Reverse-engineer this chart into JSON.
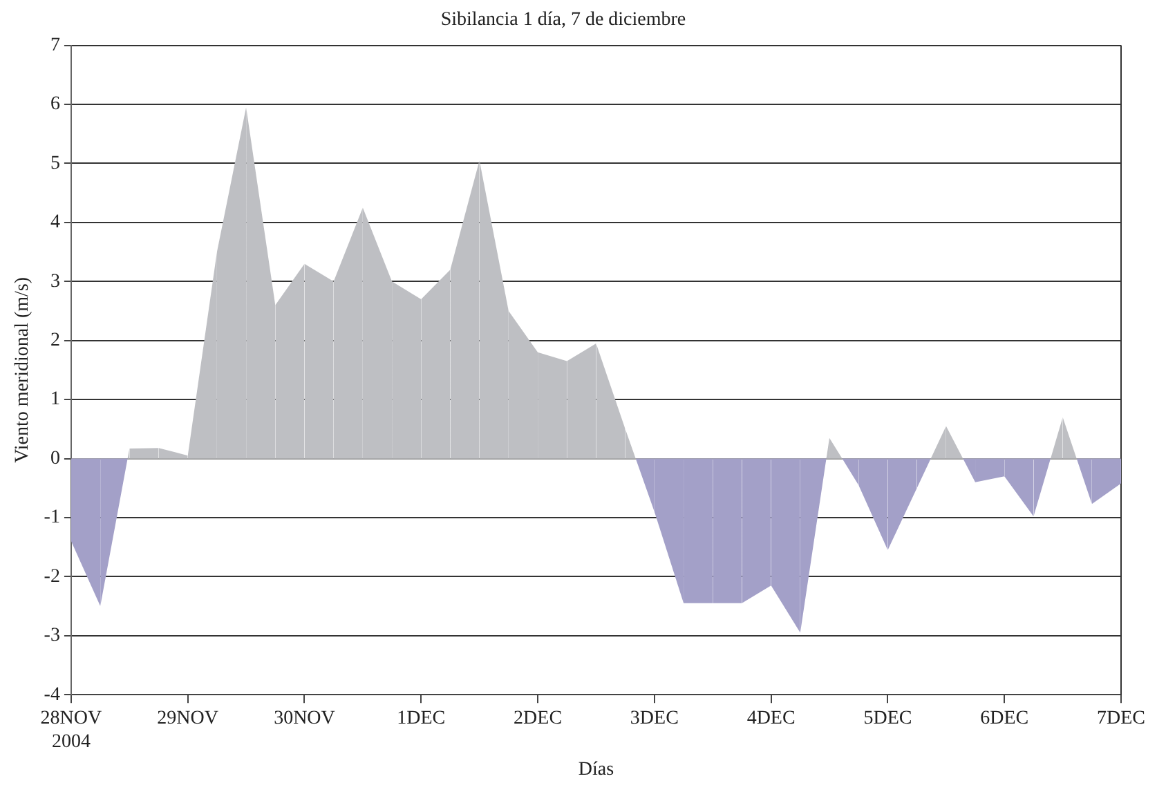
{
  "chart_data": {
    "type": "area",
    "title": "Sibilancia 1 día, 7 de diciembre",
    "xlabel": "Días",
    "ylabel": "Viento meridional (m/s)",
    "x": [
      "2004-11-28T00:00",
      "2004-11-28T06:00",
      "2004-11-28T12:00",
      "2004-11-28T18:00",
      "2004-11-29T00:00",
      "2004-11-29T06:00",
      "2004-11-29T12:00",
      "2004-11-29T18:00",
      "2004-11-30T00:00",
      "2004-11-30T06:00",
      "2004-11-30T12:00",
      "2004-11-30T18:00",
      "2004-12-01T00:00",
      "2004-12-01T06:00",
      "2004-12-01T12:00",
      "2004-12-01T18:00",
      "2004-12-02T00:00",
      "2004-12-02T06:00",
      "2004-12-02T12:00",
      "2004-12-02T18:00",
      "2004-12-03T00:00",
      "2004-12-03T06:00",
      "2004-12-03T12:00",
      "2004-12-03T18:00",
      "2004-12-04T00:00",
      "2004-12-04T06:00",
      "2004-12-04T12:00",
      "2004-12-04T18:00",
      "2004-12-05T00:00",
      "2004-12-05T06:00",
      "2004-12-05T12:00",
      "2004-12-05T18:00",
      "2004-12-06T00:00",
      "2004-12-06T06:00",
      "2004-12-06T12:00",
      "2004-12-06T18:00",
      "2004-12-07T00:00"
    ],
    "series": [
      {
        "values": [
          -1.4,
          -2.5,
          0.17,
          0.18,
          0.05,
          3.5,
          5.95,
          2.6,
          3.3,
          3.0,
          4.25,
          3.0,
          2.7,
          3.2,
          5.05,
          2.5,
          1.8,
          1.65,
          1.95,
          0.5,
          -0.9,
          -2.45,
          -2.45,
          -2.45,
          -2.15,
          -2.95,
          0.35,
          -0.45,
          -1.55,
          -0.5,
          0.55,
          -0.4,
          -0.3,
          -0.98,
          0.7,
          -0.77,
          -0.42
        ],
        "colors": [
          "#a3a0c8",
          "#a3a0c8",
          "#bebfc3",
          "#bebfc3",
          "#bebfc3",
          "#bebfc3",
          "#bebfc3",
          "#bebfc3",
          "#bebfc3",
          "#bebfc3",
          "#bebfc3",
          "#bebfc3",
          "#bebfc3",
          "#bebfc3",
          "#bebfc3",
          "#bebfc3",
          "#bebfc3",
          "#bebfc3",
          "#bebfc3",
          "#bebfc3",
          "#a3a0c8",
          "#a3a0c8",
          "#a3a0c8",
          "#a3a0c8",
          "#a3a0c8",
          "#a3a0c8",
          "#bebfc3",
          "#a3a0c8",
          "#a3a0c8",
          "#a3a0c8",
          "#bebfc3",
          "#a3a0c8",
          "#a3a0c8",
          "#a3a0c8",
          "#bebfc3",
          "#a3a0c8",
          "#a3a0c8"
        ]
      }
    ],
    "xlim": [
      "2004-11-28",
      "2004-12-07"
    ],
    "xticks": [
      {
        "value": "2004-11-28",
        "label": "28NOV\n2004"
      },
      {
        "value": "2004-11-29",
        "label": "29NOV"
      },
      {
        "value": "2004-11-30",
        "label": "30NOV"
      },
      {
        "value": "2004-12-01",
        "label": "1DEC"
      },
      {
        "value": "2004-12-02",
        "label": "2DEC"
      },
      {
        "value": "2004-12-03",
        "label": "3DEC"
      },
      {
        "value": "2004-12-04",
        "label": "4DEC"
      },
      {
        "value": "2004-12-05",
        "label": "5DEC"
      },
      {
        "value": "2004-12-06",
        "label": "6DEC"
      },
      {
        "value": "2004-12-07",
        "label": "7DEC"
      }
    ],
    "ylim": [
      -4,
      7
    ],
    "yticks": [
      -4,
      -3,
      -2,
      -1,
      0,
      1,
      2,
      3,
      4,
      5,
      6,
      7
    ],
    "grid": "y",
    "legend": false,
    "marker": "none"
  }
}
